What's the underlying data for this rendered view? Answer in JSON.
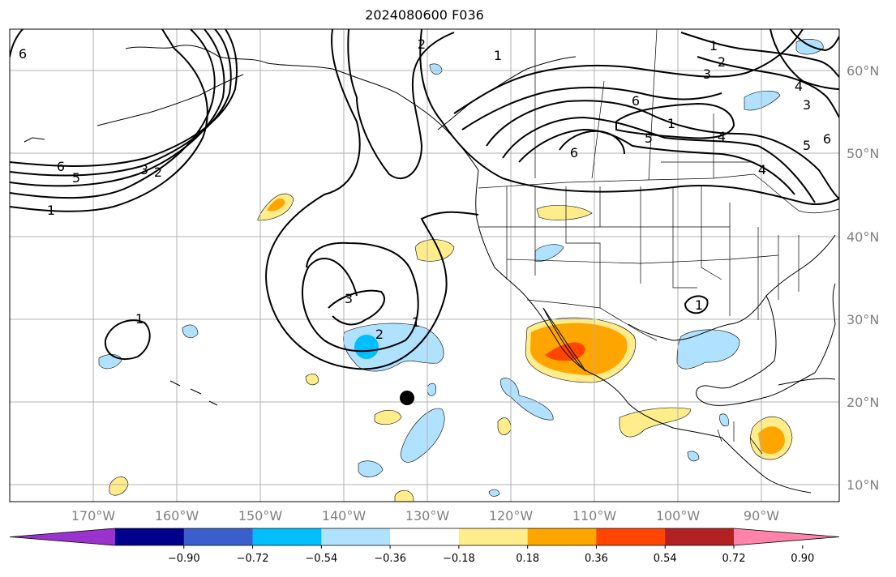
{
  "title": "2024080600 F036",
  "lon_labels": [
    "170°W",
    "160°W",
    "150°W",
    "140°W",
    "130°W",
    "120°W",
    "110°W",
    "100°W",
    "90°W"
  ],
  "lat_labels": [
    "60°N",
    "50°N",
    "40°N",
    "30°N",
    "20°N",
    "10°N"
  ],
  "colorbar": {
    "ticks": [
      "−0.90",
      "−0.72",
      "−0.54",
      "−0.36",
      "−0.18",
      "0.18",
      "0.36",
      "0.54",
      "0.72",
      "0.90"
    ],
    "colors": [
      "#9a32cd",
      "#00008b",
      "#3a5fcd",
      "#00bfff",
      "#b0e2ff",
      "#ffffff",
      "#ffec8b",
      "#ffa500",
      "#ff4500",
      "#b22222",
      "#ff83ab"
    ]
  },
  "contour_labels": [
    "6",
    "2",
    "3",
    "5",
    "6",
    "1",
    "1",
    "3",
    "2",
    "1",
    "6",
    "4",
    "1",
    "2",
    "3",
    "4",
    "5",
    "6",
    "6",
    "5",
    "4",
    "1",
    "1",
    "2",
    "1",
    "3"
  ],
  "fill_colors": {
    "light_blue": "#b0e2ff",
    "blue": "#00bfff",
    "light_yellow": "#ffec8b",
    "orange": "#ffa500",
    "red_orange": "#ff4500"
  }
}
